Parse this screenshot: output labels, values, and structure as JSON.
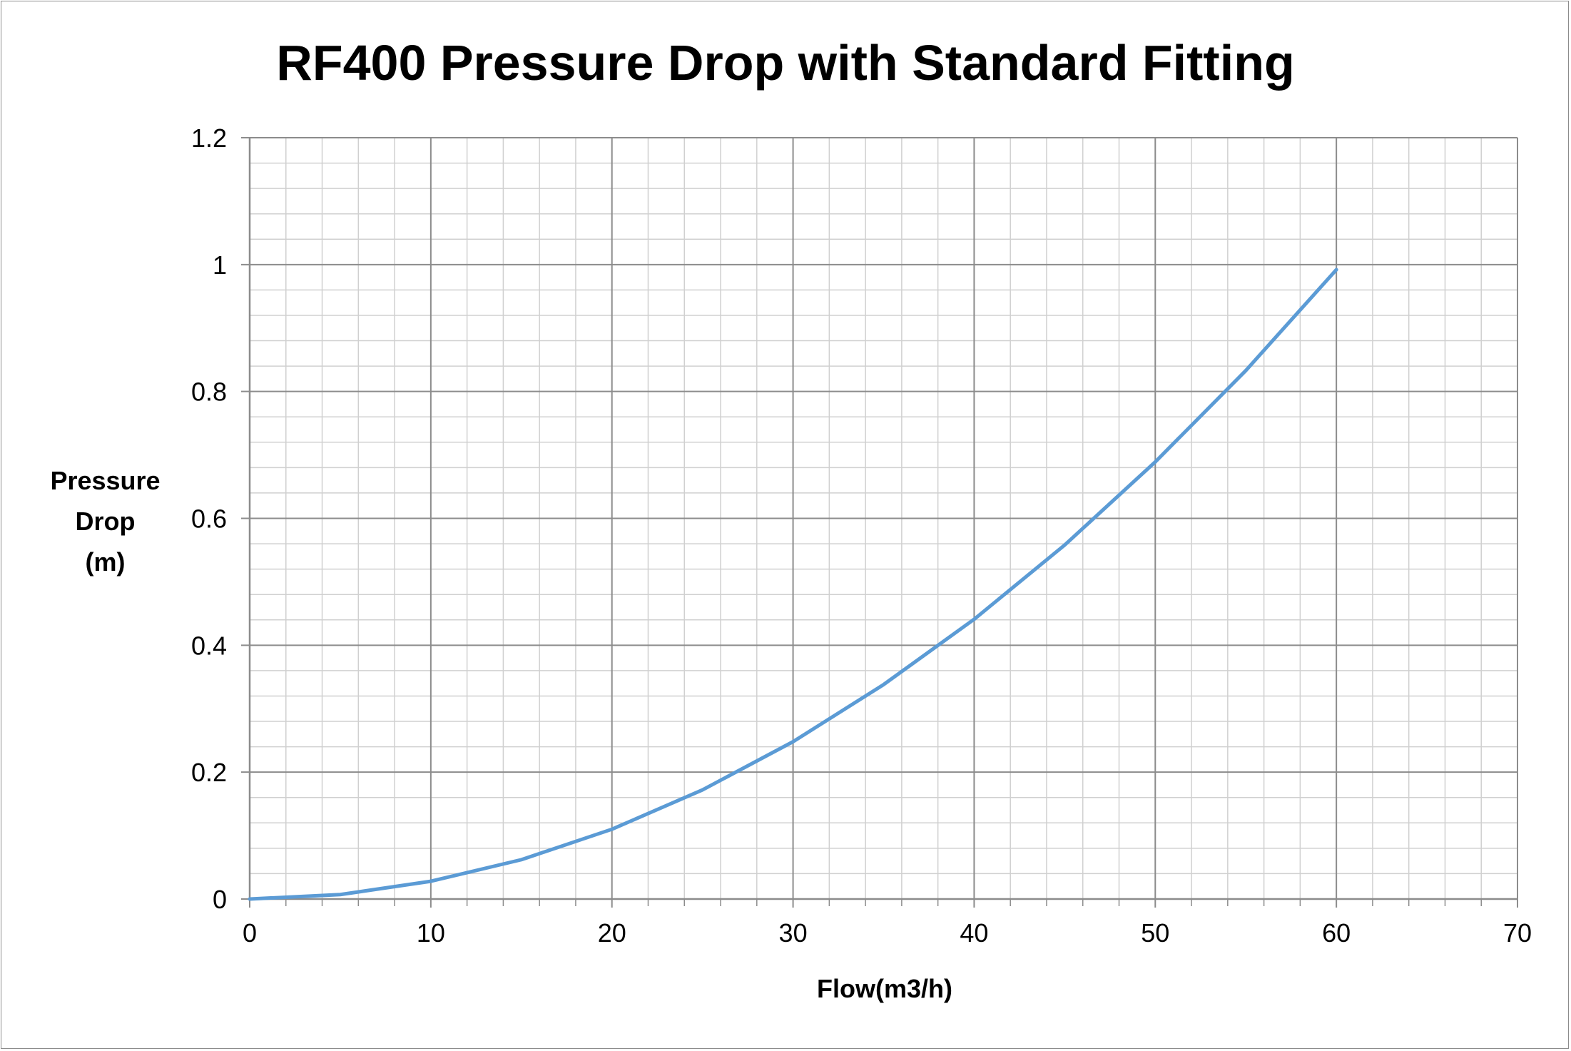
{
  "chart_data": {
    "type": "line",
    "title": "RF400 Pressure Drop with Standard Fitting",
    "xlabel": "Flow(m3/h)",
    "ylabel": "Pressure\nDrop\n(m)",
    "xlim": [
      0,
      70
    ],
    "ylim": [
      0,
      1.2
    ],
    "xticks": [
      "0",
      "10",
      "20",
      "30",
      "40",
      "50",
      "60",
      "70"
    ],
    "yticks": [
      "0",
      "0.2",
      "0.4",
      "0.6",
      "0.8",
      "1",
      "1.2"
    ],
    "grid": true,
    "legend": "none",
    "line_color": "#5b9bd5",
    "series": [
      {
        "x": [
          0,
          5,
          10,
          15,
          20,
          25,
          30,
          35,
          40,
          45,
          50,
          55,
          60
        ],
        "y": [
          0,
          0.007,
          0.028,
          0.062,
          0.11,
          0.172,
          0.248,
          0.338,
          0.441,
          0.558,
          0.689,
          0.833,
          0.992
        ]
      }
    ]
  }
}
